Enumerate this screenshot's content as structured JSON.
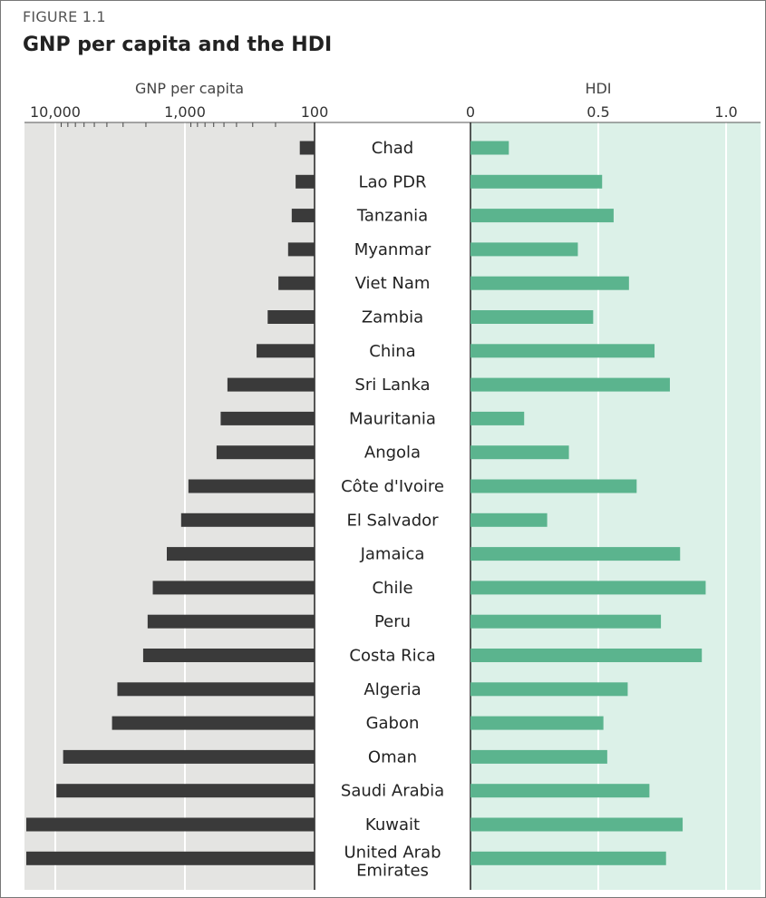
{
  "figure": {
    "label": "FIGURE 1.1",
    "title": "GNP per capita and the HDI"
  },
  "chart_data": {
    "type": "bar",
    "layout": "paired-horizontal",
    "categories": [
      "Chad",
      "Lao PDR",
      "Tanzania",
      "Myanmar",
      "Viet Nam",
      "Zambia",
      "China",
      "Sri Lanka",
      "Mauritania",
      "Angola",
      "Côte d'Ivoire",
      "El Salvador",
      "Jamaica",
      "Chile",
      "Peru",
      "Costa Rica",
      "Algeria",
      "Gabon",
      "Oman",
      "Saudi Arabia",
      "Kuwait",
      "United Arab Emirates"
    ],
    "left_panel": {
      "axis_title": "GNP per capita",
      "scale": "log",
      "direction": "reversed",
      "xlim": [
        100,
        20000
      ],
      "ticks": [
        {
          "value": 10000,
          "label": "10,000"
        },
        {
          "value": 1000,
          "label": "1,000"
        },
        {
          "value": 100,
          "label": "100"
        }
      ],
      "bar_color": "#3a3a3a",
      "background_color": "#e4e4e2",
      "values": [
        130,
        140,
        150,
        160,
        190,
        230,
        280,
        470,
        530,
        570,
        940,
        1070,
        1380,
        1770,
        1940,
        2100,
        3320,
        3650,
        8700,
        9800,
        18400,
        19800
      ]
    },
    "right_panel": {
      "axis_title": "HDI",
      "scale": "linear",
      "xlim": [
        0,
        1.12
      ],
      "ticks": [
        {
          "value": 0,
          "label": "0"
        },
        {
          "value": 0.5,
          "label": "0.5"
        },
        {
          "value": 1.0,
          "label": "1.0"
        }
      ],
      "bar_color": "#5bb48e",
      "background_color": "#dcf1e8",
      "values": [
        0.15,
        0.515,
        0.56,
        0.42,
        0.62,
        0.48,
        0.72,
        0.78,
        0.21,
        0.385,
        0.65,
        0.3,
        0.82,
        0.92,
        0.745,
        0.905,
        0.615,
        0.52,
        0.535,
        0.7,
        0.83,
        0.765
      ]
    },
    "grid": true,
    "legend": "none"
  }
}
